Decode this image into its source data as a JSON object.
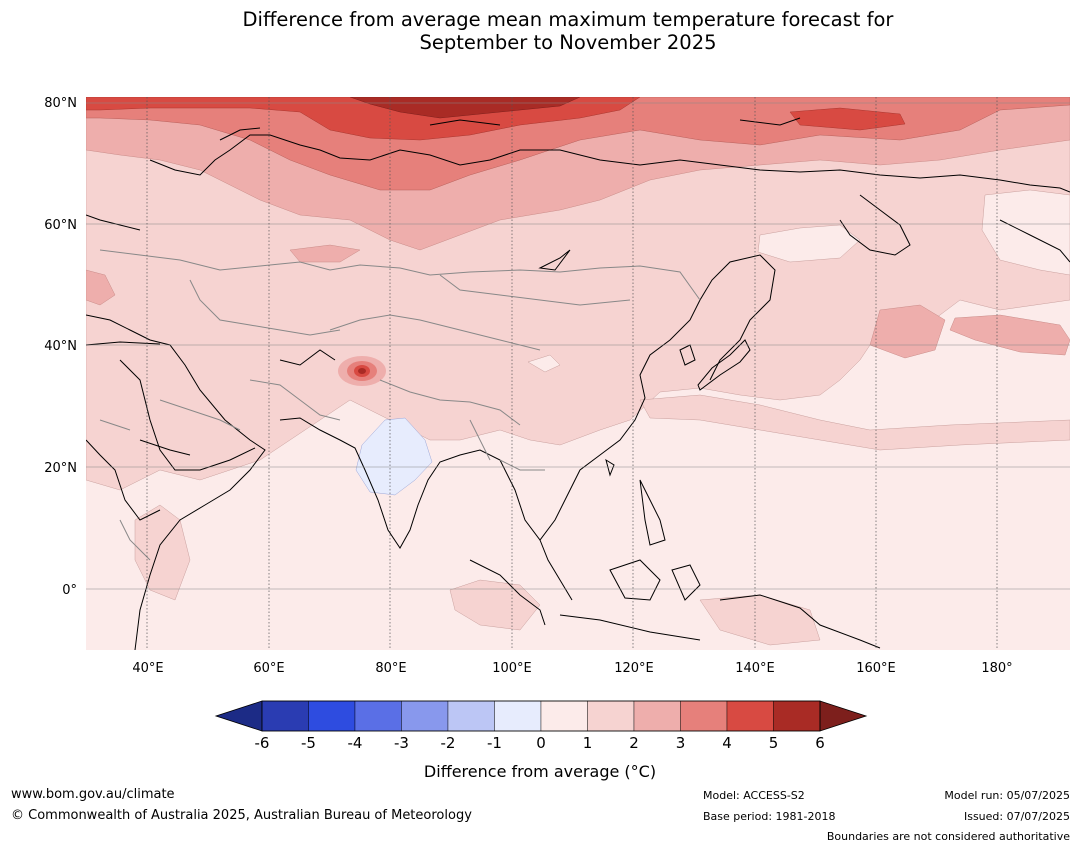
{
  "title": {
    "line1": "Difference from average mean maximum temperature forecast for",
    "line2": "September to November 2025"
  },
  "map": {
    "lat_labels": [
      "80°N",
      "60°N",
      "40°N",
      "20°N",
      "0°"
    ],
    "lon_labels": [
      "40°E",
      "60°E",
      "80°E",
      "100°E",
      "120°E",
      "140°E",
      "160°E",
      "180°"
    ],
    "extent": {
      "lon_min": 30,
      "lon_max": 191,
      "lat_min": -10,
      "lat_max": 81
    }
  },
  "colorbar": {
    "ticks": [
      "-6",
      "-5",
      "-4",
      "-3",
      "-2",
      "-1",
      "0",
      "1",
      "2",
      "3",
      "4",
      "5",
      "6"
    ],
    "colors": [
      "#1c2b86",
      "#2a3cb2",
      "#2e4ce0",
      "#5a6fe6",
      "#8898ed",
      "#bcc6f5",
      "#e7ecfd",
      "#fcebea",
      "#f6d3d1",
      "#eeaeac",
      "#e6807b",
      "#d84a42",
      "#a92b25",
      "#7d1f1c"
    ],
    "label": "Difference from average (°C)"
  },
  "footer": {
    "url": "www.bom.gov.au/climate",
    "copyright": "© Commonwealth of Australia 2025, Australian Bureau of Meteorology",
    "model": "Model: ACCESS-S2",
    "base_period": "Base period: 1981-2018",
    "model_run": "Model run: 05/07/2025",
    "issued": "Issued: 07/07/2025",
    "disclaimer": "Boundaries are not considered authoritative"
  }
}
